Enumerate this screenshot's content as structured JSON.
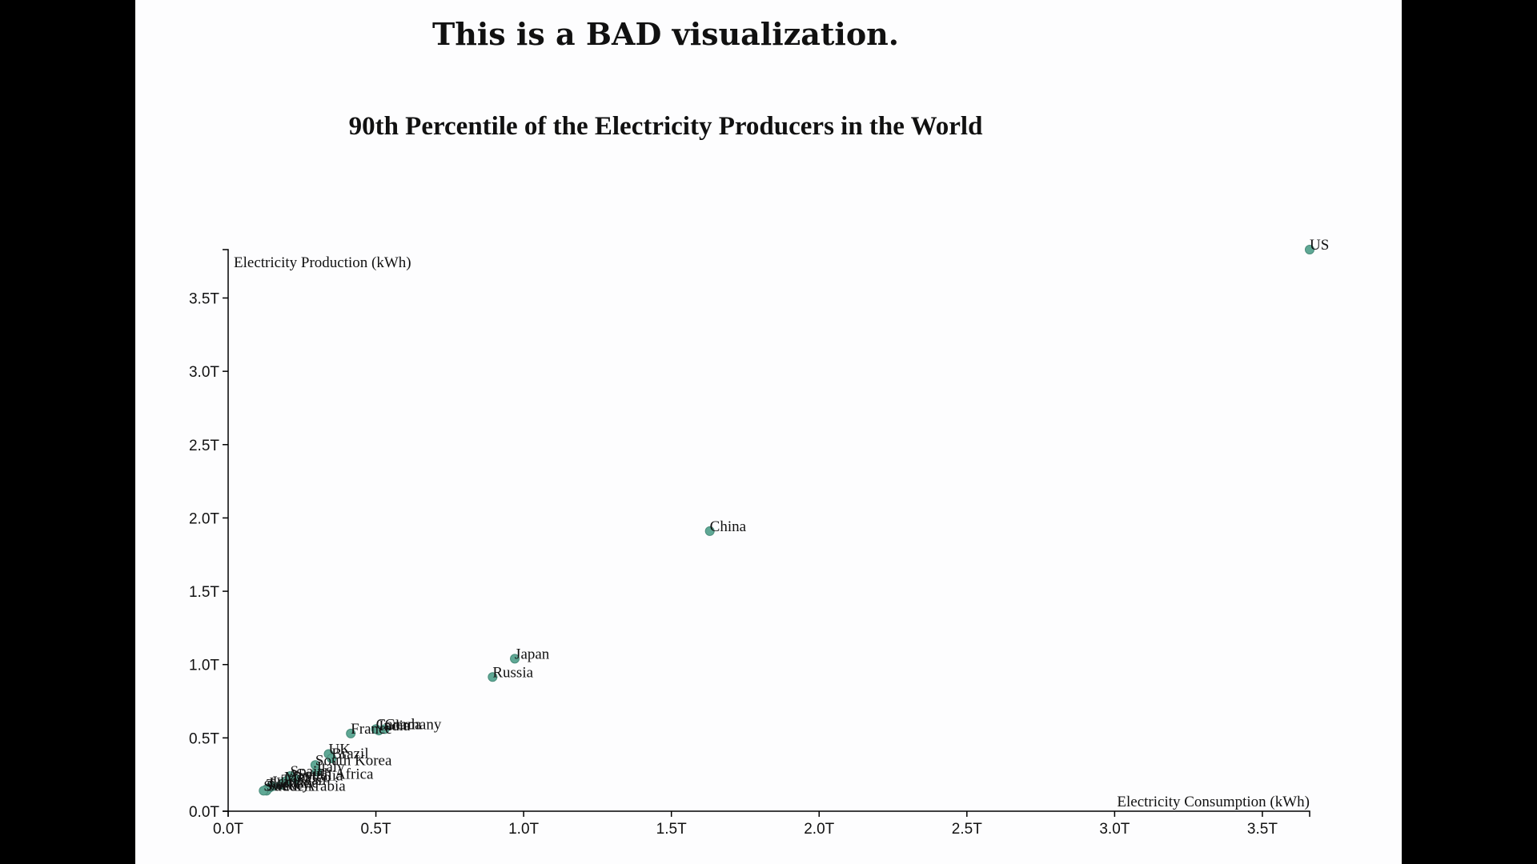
{
  "header": {
    "title": "This is a BAD visualization."
  },
  "colors": {
    "point": "#5fa895",
    "point_stroke": "#4a8c7b",
    "axis": "#000000",
    "page_background": "#fdfdfe",
    "outer_background": "#000000"
  },
  "chart_data": {
    "type": "scatter",
    "title": "90th Percentile of the Electricity Producers in the World",
    "xlabel": "Electricity Consumption (kWh)",
    "ylabel": "Electricity Production (kWh)",
    "xlim": [
      0,
      3.66
    ],
    "ylim": [
      0,
      3.83
    ],
    "unit": "trillion kWh",
    "x_ticks": [
      0,
      0.5,
      1.0,
      1.5,
      2.0,
      2.5,
      3.0,
      3.5
    ],
    "x_tick_labels": [
      "0.0T",
      "0.5T",
      "1.0T",
      "1.5T",
      "2.0T",
      "2.5T",
      "3.0T",
      "3.5T"
    ],
    "y_ticks": [
      0,
      0.5,
      1.0,
      1.5,
      2.0,
      2.5,
      3.0,
      3.5
    ],
    "y_tick_labels": [
      "0.0T",
      "0.5T",
      "1.0T",
      "1.5T",
      "2.0T",
      "2.5T",
      "3.0T",
      "3.5T"
    ],
    "grid": false,
    "points": [
      {
        "label": "US",
        "x": 3.66,
        "y": 3.83
      },
      {
        "label": "China",
        "x": 1.63,
        "y": 1.91
      },
      {
        "label": "Japan",
        "x": 0.97,
        "y": 1.04
      },
      {
        "label": "Russia",
        "x": 0.895,
        "y": 0.915
      },
      {
        "label": "Germany",
        "x": 0.53,
        "y": 0.56
      },
      {
        "label": "Canada",
        "x": 0.5,
        "y": 0.56
      },
      {
        "label": "India",
        "x": 0.51,
        "y": 0.55
      },
      {
        "label": "France",
        "x": 0.415,
        "y": 0.53
      },
      {
        "label": "UK",
        "x": 0.34,
        "y": 0.39
      },
      {
        "label": "Brazil",
        "x": 0.35,
        "y": 0.36
      },
      {
        "label": "South Korea",
        "x": 0.295,
        "y": 0.315
      },
      {
        "label": "Italy",
        "x": 0.3,
        "y": 0.27
      },
      {
        "label": "Spain",
        "x": 0.21,
        "y": 0.24
      },
      {
        "label": "South Africa",
        "x": 0.23,
        "y": 0.22
      },
      {
        "label": "Australia",
        "x": 0.2,
        "y": 0.21
      },
      {
        "label": "Mexico",
        "x": 0.19,
        "y": 0.2
      },
      {
        "label": "Iran",
        "x": 0.15,
        "y": 0.17
      },
      {
        "label": "Taiwan",
        "x": 0.18,
        "y": 0.18
      },
      {
        "label": "Ukraine",
        "x": 0.14,
        "y": 0.16
      },
      {
        "label": "Turkey",
        "x": 0.13,
        "y": 0.15
      },
      {
        "label": "Saudi Arabia",
        "x": 0.13,
        "y": 0.14
      },
      {
        "label": "Sweden",
        "x": 0.12,
        "y": 0.14
      }
    ]
  }
}
